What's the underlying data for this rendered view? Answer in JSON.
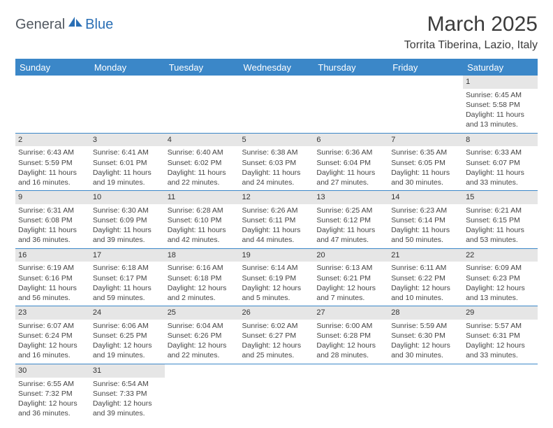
{
  "logo": {
    "part1": "General",
    "part2": "Blue"
  },
  "title": "March 2025",
  "location": "Torrita Tiberina, Lazio, Italy",
  "colors": {
    "header_bg": "#3b87c8",
    "header_text": "#ffffff",
    "daynum_bg": "#e6e6e6",
    "cell_border": "#3b87c8",
    "logo_dark": "#515860",
    "logo_blue": "#2a6fb5"
  },
  "fonts": {
    "title_size": 30,
    "location_size": 16,
    "day_header_size": 13,
    "cell_size": 10.5
  },
  "day_headers": [
    "Sunday",
    "Monday",
    "Tuesday",
    "Wednesday",
    "Thursday",
    "Friday",
    "Saturday"
  ],
  "weeks": [
    [
      null,
      null,
      null,
      null,
      null,
      null,
      {
        "n": "1",
        "sr": "Sunrise: 6:45 AM",
        "ss": "Sunset: 5:58 PM",
        "dl": "Daylight: 11 hours and 13 minutes."
      }
    ],
    [
      {
        "n": "2",
        "sr": "Sunrise: 6:43 AM",
        "ss": "Sunset: 5:59 PM",
        "dl": "Daylight: 11 hours and 16 minutes."
      },
      {
        "n": "3",
        "sr": "Sunrise: 6:41 AM",
        "ss": "Sunset: 6:01 PM",
        "dl": "Daylight: 11 hours and 19 minutes."
      },
      {
        "n": "4",
        "sr": "Sunrise: 6:40 AM",
        "ss": "Sunset: 6:02 PM",
        "dl": "Daylight: 11 hours and 22 minutes."
      },
      {
        "n": "5",
        "sr": "Sunrise: 6:38 AM",
        "ss": "Sunset: 6:03 PM",
        "dl": "Daylight: 11 hours and 24 minutes."
      },
      {
        "n": "6",
        "sr": "Sunrise: 6:36 AM",
        "ss": "Sunset: 6:04 PM",
        "dl": "Daylight: 11 hours and 27 minutes."
      },
      {
        "n": "7",
        "sr": "Sunrise: 6:35 AM",
        "ss": "Sunset: 6:05 PM",
        "dl": "Daylight: 11 hours and 30 minutes."
      },
      {
        "n": "8",
        "sr": "Sunrise: 6:33 AM",
        "ss": "Sunset: 6:07 PM",
        "dl": "Daylight: 11 hours and 33 minutes."
      }
    ],
    [
      {
        "n": "9",
        "sr": "Sunrise: 6:31 AM",
        "ss": "Sunset: 6:08 PM",
        "dl": "Daylight: 11 hours and 36 minutes."
      },
      {
        "n": "10",
        "sr": "Sunrise: 6:30 AM",
        "ss": "Sunset: 6:09 PM",
        "dl": "Daylight: 11 hours and 39 minutes."
      },
      {
        "n": "11",
        "sr": "Sunrise: 6:28 AM",
        "ss": "Sunset: 6:10 PM",
        "dl": "Daylight: 11 hours and 42 minutes."
      },
      {
        "n": "12",
        "sr": "Sunrise: 6:26 AM",
        "ss": "Sunset: 6:11 PM",
        "dl": "Daylight: 11 hours and 44 minutes."
      },
      {
        "n": "13",
        "sr": "Sunrise: 6:25 AM",
        "ss": "Sunset: 6:12 PM",
        "dl": "Daylight: 11 hours and 47 minutes."
      },
      {
        "n": "14",
        "sr": "Sunrise: 6:23 AM",
        "ss": "Sunset: 6:14 PM",
        "dl": "Daylight: 11 hours and 50 minutes."
      },
      {
        "n": "15",
        "sr": "Sunrise: 6:21 AM",
        "ss": "Sunset: 6:15 PM",
        "dl": "Daylight: 11 hours and 53 minutes."
      }
    ],
    [
      {
        "n": "16",
        "sr": "Sunrise: 6:19 AM",
        "ss": "Sunset: 6:16 PM",
        "dl": "Daylight: 11 hours and 56 minutes."
      },
      {
        "n": "17",
        "sr": "Sunrise: 6:18 AM",
        "ss": "Sunset: 6:17 PM",
        "dl": "Daylight: 11 hours and 59 minutes."
      },
      {
        "n": "18",
        "sr": "Sunrise: 6:16 AM",
        "ss": "Sunset: 6:18 PM",
        "dl": "Daylight: 12 hours and 2 minutes."
      },
      {
        "n": "19",
        "sr": "Sunrise: 6:14 AM",
        "ss": "Sunset: 6:19 PM",
        "dl": "Daylight: 12 hours and 5 minutes."
      },
      {
        "n": "20",
        "sr": "Sunrise: 6:13 AM",
        "ss": "Sunset: 6:21 PM",
        "dl": "Daylight: 12 hours and 7 minutes."
      },
      {
        "n": "21",
        "sr": "Sunrise: 6:11 AM",
        "ss": "Sunset: 6:22 PM",
        "dl": "Daylight: 12 hours and 10 minutes."
      },
      {
        "n": "22",
        "sr": "Sunrise: 6:09 AM",
        "ss": "Sunset: 6:23 PM",
        "dl": "Daylight: 12 hours and 13 minutes."
      }
    ],
    [
      {
        "n": "23",
        "sr": "Sunrise: 6:07 AM",
        "ss": "Sunset: 6:24 PM",
        "dl": "Daylight: 12 hours and 16 minutes."
      },
      {
        "n": "24",
        "sr": "Sunrise: 6:06 AM",
        "ss": "Sunset: 6:25 PM",
        "dl": "Daylight: 12 hours and 19 minutes."
      },
      {
        "n": "25",
        "sr": "Sunrise: 6:04 AM",
        "ss": "Sunset: 6:26 PM",
        "dl": "Daylight: 12 hours and 22 minutes."
      },
      {
        "n": "26",
        "sr": "Sunrise: 6:02 AM",
        "ss": "Sunset: 6:27 PM",
        "dl": "Daylight: 12 hours and 25 minutes."
      },
      {
        "n": "27",
        "sr": "Sunrise: 6:00 AM",
        "ss": "Sunset: 6:28 PM",
        "dl": "Daylight: 12 hours and 28 minutes."
      },
      {
        "n": "28",
        "sr": "Sunrise: 5:59 AM",
        "ss": "Sunset: 6:30 PM",
        "dl": "Daylight: 12 hours and 30 minutes."
      },
      {
        "n": "29",
        "sr": "Sunrise: 5:57 AM",
        "ss": "Sunset: 6:31 PM",
        "dl": "Daylight: 12 hours and 33 minutes."
      }
    ],
    [
      {
        "n": "30",
        "sr": "Sunrise: 6:55 AM",
        "ss": "Sunset: 7:32 PM",
        "dl": "Daylight: 12 hours and 36 minutes."
      },
      {
        "n": "31",
        "sr": "Sunrise: 6:54 AM",
        "ss": "Sunset: 7:33 PM",
        "dl": "Daylight: 12 hours and 39 minutes."
      },
      null,
      null,
      null,
      null,
      null
    ]
  ]
}
